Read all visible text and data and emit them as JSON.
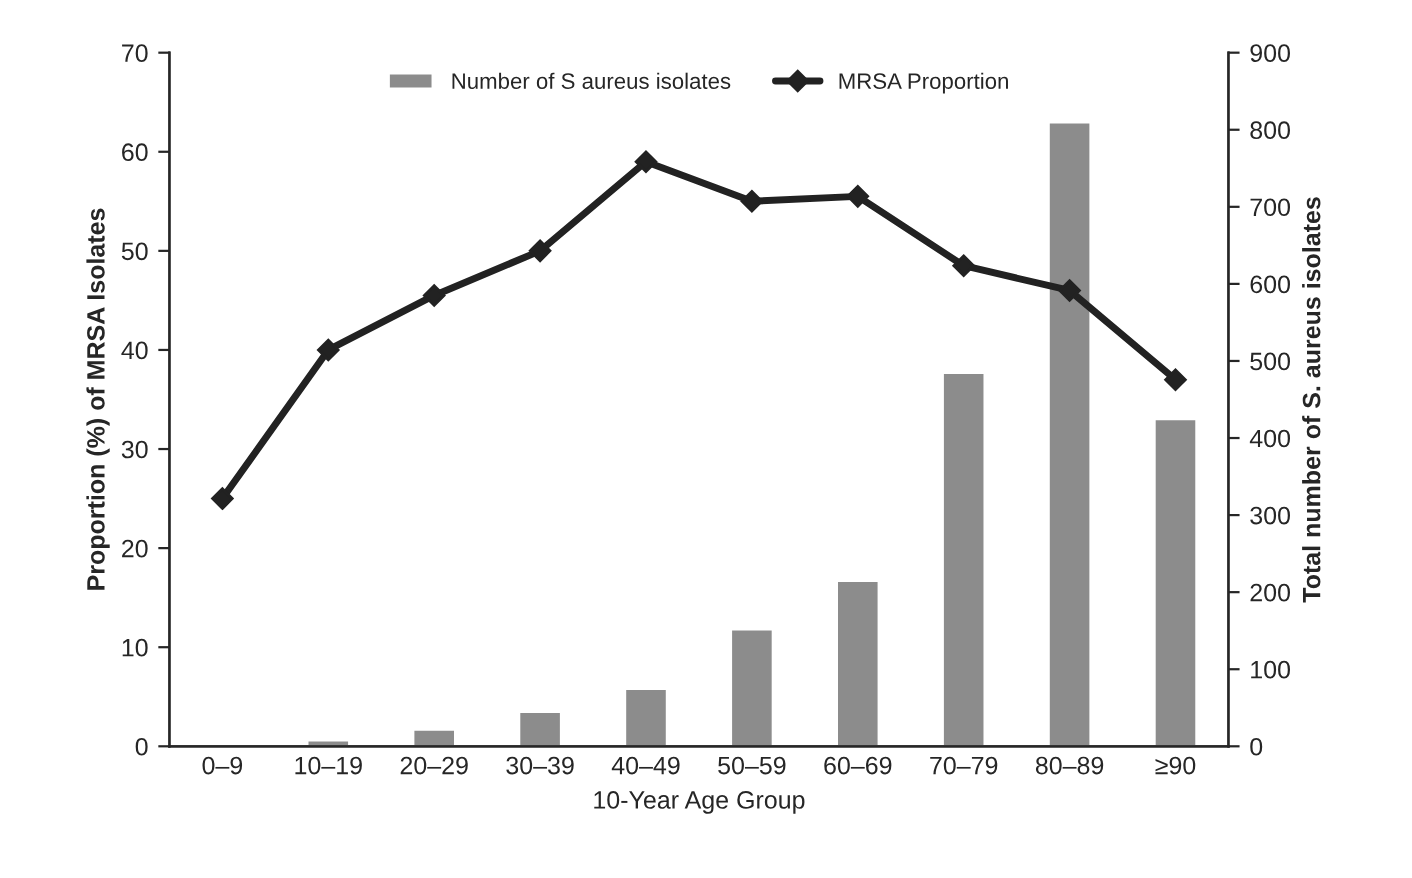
{
  "chart_data": {
    "type": "bar",
    "xlabel": "10-Year Age Group",
    "ylabel": "Proportion (%) of MRSA Isolates",
    "y2label": "Total number of S. aureus isolates",
    "categories": [
      "0–9",
      "10–19",
      "20–29",
      "30–39",
      "40–49",
      "50–59",
      "60–69",
      "70–79",
      "80–89",
      "≥90"
    ],
    "series": [
      {
        "name": "Number of S aureus isolates",
        "axis": "y2",
        "color": "#8c8c8c",
        "values": [
          2,
          8,
          22,
          45,
          75,
          152,
          215,
          485,
          810,
          425
        ]
      },
      {
        "name": "MRSA Proportion",
        "type": "line",
        "axis": "y",
        "color": "#222222",
        "marker": "diamond",
        "values": [
          25,
          40,
          45.5,
          50,
          59,
          55,
          55.5,
          48.5,
          46,
          37
        ]
      }
    ],
    "ylim": [
      0,
      70
    ],
    "yticks": [
      0,
      10,
      20,
      30,
      40,
      50,
      60,
      70
    ],
    "y2lim": [
      0,
      900
    ],
    "y2ticks": [
      0,
      100,
      200,
      300,
      400,
      500,
      600,
      700,
      800,
      900
    ],
    "legend": "top",
    "grid": false
  }
}
